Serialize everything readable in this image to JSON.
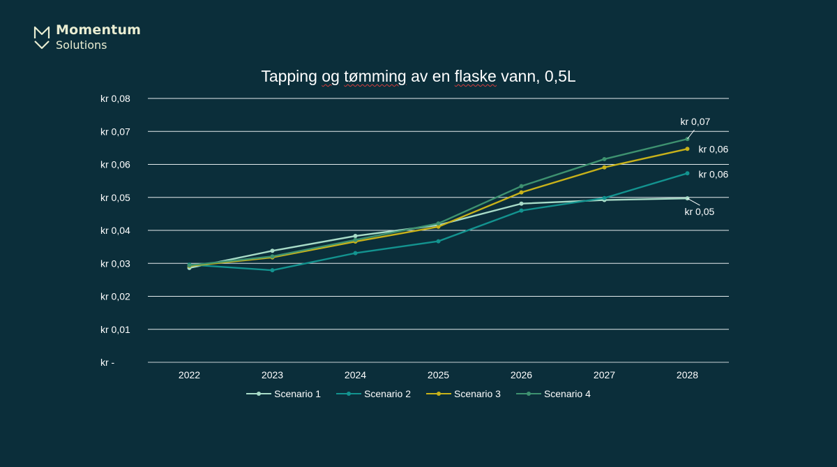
{
  "brand": {
    "name_line1": "Momentum",
    "name_line2": "Solutions",
    "logo_color": "#e9edd2",
    "logo_icon": "momentum-m-chevron-icon"
  },
  "chart_data": {
    "type": "line",
    "title_parts": [
      "Tapping ",
      "og",
      " ",
      "tømming",
      " av en ",
      "flaske",
      " vann, 0,5L"
    ],
    "title": "Tapping og tømming av en flaske vann, 0,5L",
    "xlabel": "",
    "ylabel": "",
    "categories": [
      "2022",
      "2023",
      "2024",
      "2025",
      "2026",
      "2027",
      "2028"
    ],
    "ylim": [
      0,
      0.08
    ],
    "yticks": [
      0,
      0.01,
      0.02,
      0.03,
      0.04,
      0.05,
      0.06,
      0.07,
      0.08
    ],
    "ytick_labels": [
      "kr  -",
      "kr  0,01",
      "kr  0,02",
      "kr  0,03",
      "kr  0,04",
      "kr  0,05",
      "kr  0,06",
      "kr  0,07",
      "kr  0,08"
    ],
    "grid": true,
    "legend_position": "bottom",
    "series": [
      {
        "name": "Scenario 1",
        "color": "#a8dcc8",
        "values": [
          0.0286,
          0.0338,
          0.0383,
          0.0416,
          0.0481,
          0.0492,
          0.0497
        ],
        "end_label": "kr  0,05"
      },
      {
        "name": "Scenario 2",
        "color": "#13938f",
        "values": [
          0.0296,
          0.0279,
          0.0331,
          0.0367,
          0.046,
          0.0498,
          0.0573
        ],
        "end_label": "kr  0,06"
      },
      {
        "name": "Scenario 3",
        "color": "#c8b21a",
        "values": [
          0.0292,
          0.0318,
          0.0366,
          0.0411,
          0.0515,
          0.0591,
          0.0647
        ],
        "end_label": "kr  0,06"
      },
      {
        "name": "Scenario 4",
        "color": "#3e9270",
        "values": [
          0.0294,
          0.0321,
          0.0371,
          0.0421,
          0.0534,
          0.0616,
          0.0677
        ],
        "end_label": "kr  0,07"
      }
    ]
  }
}
